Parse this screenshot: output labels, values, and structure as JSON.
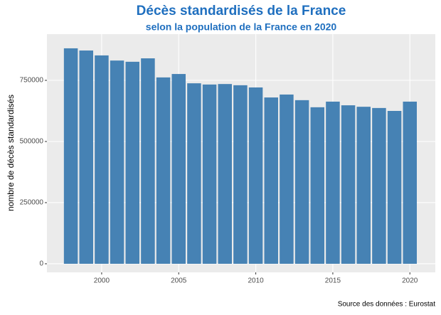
{
  "chart_data": {
    "type": "bar",
    "title": "Décès standardisés de la France",
    "subtitle": "selon la population de la France en 2020",
    "y_label": "nombre de décès standardisés",
    "caption": "Source des données : Eurostat",
    "x": [
      1998,
      1999,
      2000,
      2001,
      2002,
      2003,
      2004,
      2005,
      2006,
      2007,
      2008,
      2009,
      2010,
      2011,
      2012,
      2013,
      2014,
      2015,
      2016,
      2017,
      2018,
      2019,
      2020
    ],
    "values": [
      881000,
      872000,
      852000,
      831000,
      826000,
      840000,
      762000,
      776000,
      738000,
      733000,
      735000,
      730000,
      721000,
      680000,
      692000,
      669000,
      640000,
      663000,
      648000,
      642000,
      637000,
      625000,
      663000
    ],
    "color": "#4682b4",
    "xlim": [
      1996.45,
      2021.65
    ],
    "xticks": [
      2000,
      2005,
      2010,
      2015,
      2020
    ],
    "ylim": [
      -35000,
      939000
    ],
    "yticks": [
      0,
      250000,
      500000,
      750000
    ],
    "grid": true
  }
}
